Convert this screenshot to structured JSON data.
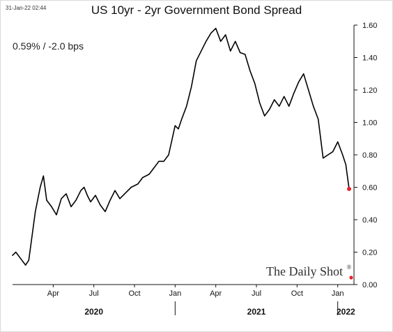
{
  "chart_data": {
    "type": "line",
    "title": "US 10yr - 2yr Government Bond Spread",
    "timestamp": "31-Jan-22 02:44",
    "annotation": "0.59%  /  -2.0 bps",
    "watermark": "The Daily Shot",
    "watermark_mark": "®",
    "ylim": [
      0.0,
      1.6
    ],
    "y_ticks": [
      "0.00",
      "0.20",
      "0.40",
      "0.60",
      "0.80",
      "1.00",
      "1.20",
      "1.40",
      "1.60"
    ],
    "x_month_labels": [
      "Apr",
      "Jul",
      "Oct",
      "Jan",
      "Apr",
      "Jul",
      "Oct",
      "Jan"
    ],
    "x_month_positions": [
      2020.25,
      2020.5,
      2020.75,
      2021.0,
      2021.25,
      2021.5,
      2021.75,
      2022.0
    ],
    "x_year_labels": [
      "2020",
      "2021",
      "2022"
    ],
    "x_year_positions": [
      2020.5,
      2021.5,
      2022.05
    ],
    "x_year_separators": [
      2021.0,
      2022.0
    ],
    "xlim": [
      2020.0,
      2022.1
    ],
    "grid": false,
    "series": [
      {
        "color": "#000000",
        "endpoint_color": "#e8212a",
        "points": [
          [
            2020.0,
            0.18
          ],
          [
            2020.02,
            0.2
          ],
          [
            2020.05,
            0.16
          ],
          [
            2020.08,
            0.12
          ],
          [
            2020.1,
            0.15
          ],
          [
            2020.12,
            0.3
          ],
          [
            2020.14,
            0.45
          ],
          [
            2020.15,
            0.5
          ],
          [
            2020.17,
            0.6
          ],
          [
            2020.19,
            0.67
          ],
          [
            2020.21,
            0.52
          ],
          [
            2020.24,
            0.48
          ],
          [
            2020.27,
            0.43
          ],
          [
            2020.3,
            0.53
          ],
          [
            2020.33,
            0.56
          ],
          [
            2020.36,
            0.48
          ],
          [
            2020.39,
            0.52
          ],
          [
            2020.42,
            0.58
          ],
          [
            2020.44,
            0.6
          ],
          [
            2020.46,
            0.55
          ],
          [
            2020.48,
            0.51
          ],
          [
            2020.51,
            0.55
          ],
          [
            2020.54,
            0.49
          ],
          [
            2020.57,
            0.45
          ],
          [
            2020.6,
            0.52
          ],
          [
            2020.63,
            0.58
          ],
          [
            2020.66,
            0.53
          ],
          [
            2020.69,
            0.56
          ],
          [
            2020.73,
            0.6
          ],
          [
            2020.77,
            0.62
          ],
          [
            2020.8,
            0.66
          ],
          [
            2020.84,
            0.68
          ],
          [
            2020.87,
            0.72
          ],
          [
            2020.9,
            0.76
          ],
          [
            2020.93,
            0.76
          ],
          [
            2020.96,
            0.8
          ],
          [
            2021.0,
            0.98
          ],
          [
            2021.02,
            0.96
          ],
          [
            2021.04,
            1.02
          ],
          [
            2021.07,
            1.1
          ],
          [
            2021.1,
            1.22
          ],
          [
            2021.13,
            1.38
          ],
          [
            2021.16,
            1.44
          ],
          [
            2021.19,
            1.5
          ],
          [
            2021.22,
            1.55
          ],
          [
            2021.25,
            1.58
          ],
          [
            2021.28,
            1.5
          ],
          [
            2021.31,
            1.54
          ],
          [
            2021.34,
            1.44
          ],
          [
            2021.37,
            1.5
          ],
          [
            2021.4,
            1.43
          ],
          [
            2021.43,
            1.42
          ],
          [
            2021.46,
            1.32
          ],
          [
            2021.49,
            1.24
          ],
          [
            2021.52,
            1.12
          ],
          [
            2021.55,
            1.04
          ],
          [
            2021.58,
            1.08
          ],
          [
            2021.61,
            1.14
          ],
          [
            2021.64,
            1.1
          ],
          [
            2021.67,
            1.16
          ],
          [
            2021.7,
            1.1
          ],
          [
            2021.73,
            1.18
          ],
          [
            2021.76,
            1.25
          ],
          [
            2021.79,
            1.3
          ],
          [
            2021.82,
            1.2
          ],
          [
            2021.85,
            1.1
          ],
          [
            2021.88,
            1.02
          ],
          [
            2021.91,
            0.78
          ],
          [
            2021.94,
            0.8
          ],
          [
            2021.97,
            0.82
          ],
          [
            2022.0,
            0.88
          ],
          [
            2022.03,
            0.8
          ],
          [
            2022.05,
            0.74
          ],
          [
            2022.07,
            0.59
          ]
        ]
      }
    ]
  }
}
